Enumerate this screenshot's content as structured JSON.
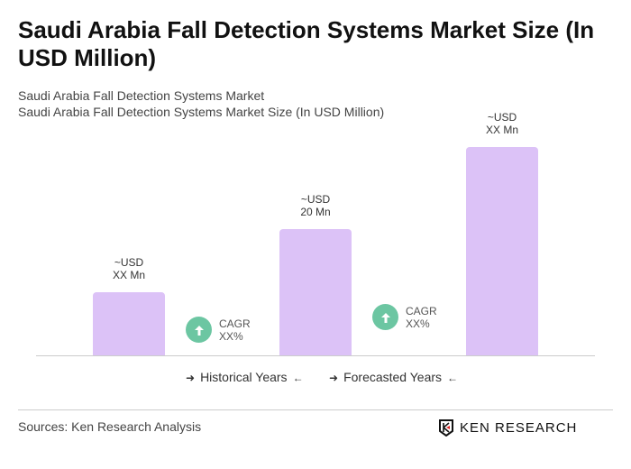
{
  "title": "Saudi Arabia Fall Detection Systems Market Size (In USD Million)",
  "subtitle1": "Saudi Arabia Fall Detection Systems Market",
  "subtitle2": "Saudi Arabia Fall Detection Systems Market Size (In USD Million)",
  "chart_data": {
    "type": "bar",
    "values": [
      10,
      20,
      33
    ],
    "data_labels": [
      {
        "line1": "~USD",
        "line2": "XX Mn"
      },
      {
        "line1": "~USD",
        "line2": "20 Mn"
      },
      {
        "line1": "~USD",
        "line2": "XX Mn"
      }
    ],
    "cagr": [
      {
        "label": "CAGR",
        "value": "XX%"
      },
      {
        "label": "CAGR",
        "value": "XX%"
      }
    ],
    "legend": [
      "Historical Years",
      "Forecasted Years"
    ],
    "bar_color": "#dcc2f7",
    "cagr_color": "#6cc6a2",
    "grid": false
  },
  "source": "Sources: Ken Research Analysis",
  "logo": "KEN RESEARCH"
}
